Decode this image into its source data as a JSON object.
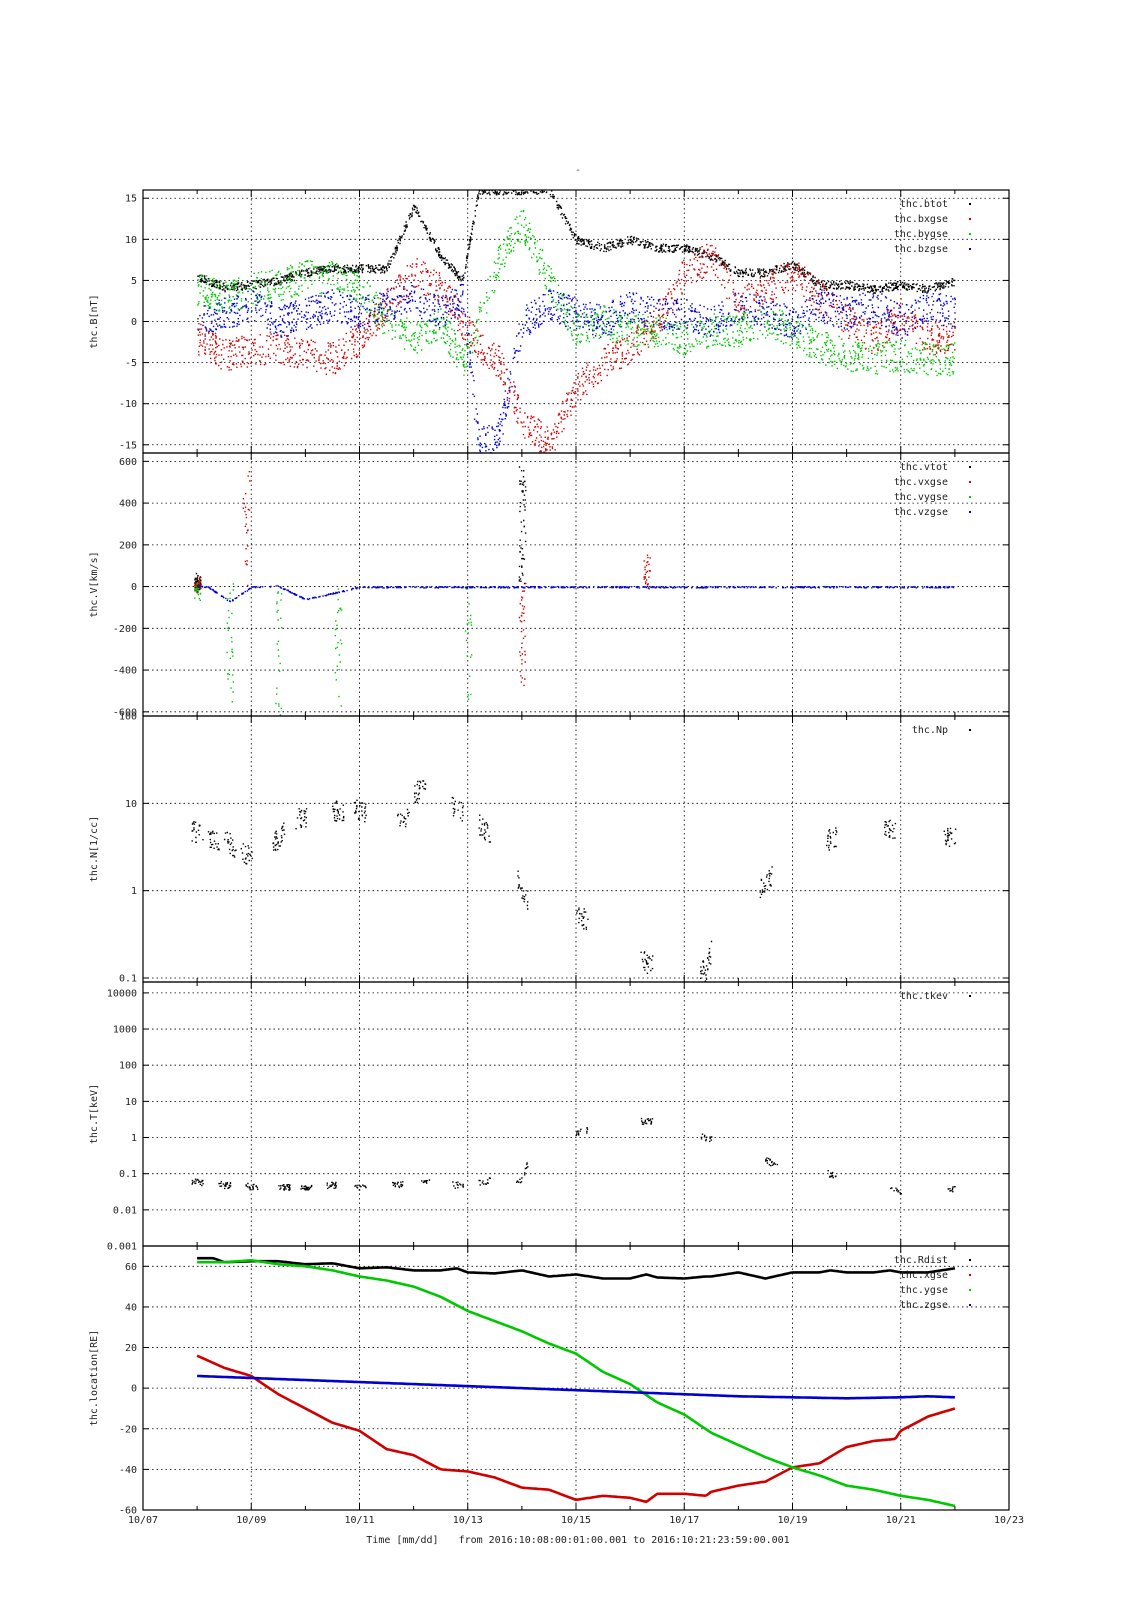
{
  "chart_data": {
    "title": "-",
    "x_axis": {
      "label": "Time [mm/dd]",
      "range_label": "from 2016:10:08:00:01:00.001  to  2016:10:21:23:59:00.001",
      "domain_days": [
        7,
        23
      ],
      "tick_days": [
        7,
        9,
        11,
        13,
        15,
        17,
        19,
        21,
        23
      ],
      "tick_labels": [
        "10/07",
        "10/09",
        "10/11",
        "10/13",
        "10/15",
        "10/17",
        "10/19",
        "10/21",
        "10/23"
      ],
      "data_start_day": 8.0,
      "data_end_day": 22.0
    },
    "panels": [
      {
        "id": "B",
        "type": "scatter",
        "ylabel": "thc.B[nT]",
        "scale": "linear",
        "ylim": [
          -16,
          16
        ],
        "yticks": [
          -15,
          -10,
          -5,
          0,
          5,
          10,
          15
        ],
        "ytick_labels": [
          "-15",
          "-10",
          "-5",
          "0",
          "5",
          "10",
          "15"
        ],
        "grid": true,
        "legend_position": "top-right",
        "series": [
          {
            "name": "thc.btot",
            "color": "#000000",
            "style": "points",
            "x": [
              8.0,
              8.5,
              9.0,
              9.5,
              10.0,
              10.5,
              11.0,
              11.5,
              12.0,
              12.5,
              12.9,
              13.2,
              13.6,
              14.0,
              14.5,
              15.0,
              15.5,
              16.0,
              16.5,
              17.0,
              17.5,
              18.0,
              18.5,
              19.0,
              19.5,
              20.0,
              20.5,
              21.0,
              21.5,
              22.0
            ],
            "y": [
              5.5,
              4.2,
              4.5,
              5.0,
              6.0,
              6.5,
              6.5,
              6.5,
              14.0,
              8.0,
              5.0,
              16.0,
              16.0,
              16.0,
              16.0,
              10.0,
              9.0,
              10.0,
              9.0,
              9.0,
              8.0,
              6.0,
              6.0,
              7.0,
              4.5,
              4.5,
              4.0,
              4.5,
              4.0,
              5.0
            ]
          },
          {
            "name": "thc.bxgse",
            "color": "#d10000",
            "style": "points",
            "x": [
              8.0,
              8.5,
              9.0,
              9.5,
              10.0,
              10.5,
              11.0,
              11.5,
              12.0,
              12.5,
              12.9,
              13.2,
              13.6,
              14.0,
              14.5,
              15.0,
              15.5,
              16.0,
              16.5,
              17.0,
              17.5,
              18.0,
              18.5,
              19.0,
              19.5,
              20.0,
              20.5,
              21.0,
              21.5,
              22.0
            ],
            "y": [
              -2.0,
              -4.0,
              -3.5,
              -3.0,
              -4.0,
              -4.5,
              -2.0,
              2.0,
              6.0,
              4.0,
              0.0,
              -3.0,
              -5.0,
              -12.0,
              -15.0,
              -8.0,
              -5.0,
              -3.0,
              0.0,
              6.0,
              8.0,
              2.0,
              4.0,
              6.0,
              3.0,
              0.0,
              -2.0,
              1.0,
              -2.0,
              -2.0
            ]
          },
          {
            "name": "thc.bygse",
            "color": "#00c800",
            "style": "points",
            "x": [
              8.0,
              8.5,
              9.0,
              9.5,
              10.0,
              10.5,
              11.0,
              11.5,
              12.0,
              12.5,
              12.9,
              13.2,
              13.6,
              14.0,
              14.5,
              15.0,
              15.5,
              16.0,
              16.5,
              17.0,
              17.5,
              18.0,
              18.5,
              19.0,
              19.5,
              20.0,
              20.5,
              21.0,
              21.5,
              22.0
            ],
            "y": [
              4.0,
              3.0,
              4.0,
              4.5,
              5.5,
              5.5,
              4.0,
              0.0,
              -2.0,
              0.0,
              -5.0,
              0.0,
              8.0,
              12.0,
              5.0,
              -1.0,
              0.0,
              -1.0,
              -1.0,
              -2.0,
              -1.0,
              -1.0,
              0.0,
              -1.0,
              -3.0,
              -4.0,
              -4.5,
              -4.0,
              -4.5,
              -4.5
            ]
          },
          {
            "name": "thc.bzgse",
            "color": "#0000d0",
            "style": "points",
            "x": [
              8.0,
              8.5,
              9.0,
              9.5,
              10.0,
              10.5,
              11.0,
              11.5,
              12.0,
              12.5,
              12.9,
              13.2,
              13.6,
              14.0,
              14.5,
              15.0,
              15.5,
              16.0,
              16.5,
              17.0,
              17.5,
              18.0,
              18.5,
              19.0,
              19.5,
              20.0,
              20.5,
              21.0,
              21.5,
              22.0
            ],
            "y": [
              0.0,
              1.0,
              2.0,
              0.0,
              1.0,
              2.0,
              1.0,
              2.0,
              3.0,
              1.0,
              3.0,
              -15.0,
              -13.0,
              0.0,
              2.0,
              1.0,
              0.0,
              2.0,
              1.0,
              1.0,
              0.0,
              2.0,
              1.0,
              0.0,
              2.0,
              1.0,
              2.0,
              0.0,
              2.0,
              1.0
            ]
          }
        ]
      },
      {
        "id": "V",
        "type": "scatter",
        "ylabel": "thc.V[km/s]",
        "scale": "linear",
        "ylim": [
          -620,
          640
        ],
        "yticks": [
          -600,
          -400,
          -200,
          0,
          200,
          400,
          600
        ],
        "ytick_labels": [
          "-600",
          "-400",
          "-200",
          "0",
          "200",
          "400",
          "600"
        ],
        "grid": true,
        "legend_position": "top-right",
        "series": [
          {
            "name": "thc.vtot",
            "color": "#000000",
            "style": "points",
            "x": [
              8.0,
              14.0
            ],
            "y": [
              40.0,
              600.0
            ]
          },
          {
            "name": "thc.vxgse",
            "color": "#d10000",
            "style": "points",
            "x": [
              8.0,
              8.9,
              14.0,
              16.3
            ],
            "y": [
              0.0,
              580.0,
              -460.0,
              150.0
            ]
          },
          {
            "name": "thc.vygse",
            "color": "#00c800",
            "style": "points",
            "x": [
              8.0,
              8.6,
              9.5,
              10.6,
              13.0
            ],
            "y": [
              -30.0,
              -540.0,
              -610.0,
              -600.0,
              -550.0
            ]
          },
          {
            "name": "thc.vzgse",
            "color": "#0000d0",
            "style": "points",
            "x": [
              8.0,
              8.2,
              8.6,
              9.0,
              9.5,
              10.0,
              11.0,
              12.0,
              13.0,
              14.0,
              15.0,
              16.0,
              17.0,
              18.0,
              19.0,
              20.0,
              21.0,
              22.0
            ],
            "y": [
              5.0,
              0.0,
              -70.0,
              0.0,
              5.0,
              -60.0,
              0.0,
              0.0,
              0.0,
              0.0,
              0.0,
              0.0,
              0.0,
              0.0,
              0.0,
              0.0,
              0.0,
              0.0
            ]
          }
        ]
      },
      {
        "id": "N",
        "type": "scatter",
        "ylabel": "thc.N[1/cc]",
        "scale": "log",
        "ylim": [
          0.09,
          100
        ],
        "yticks": [
          0.1,
          1,
          10,
          100
        ],
        "ytick_labels": [
          "0.1",
          "1",
          "10",
          "100"
        ],
        "grid": true,
        "legend_position": "top-right",
        "series": [
          {
            "name": "thc.Np",
            "color": "#000000",
            "style": "points",
            "x": [
              8.0,
              8.3,
              8.6,
              8.9,
              9.5,
              9.9,
              10.6,
              11.0,
              11.8,
              12.1,
              12.8,
              13.3,
              14.0,
              15.1,
              16.3,
              17.4,
              18.5,
              19.7,
              20.8,
              21.9
            ],
            "y": [
              4.8,
              4.0,
              3.5,
              2.5,
              4.0,
              7.0,
              8.5,
              8.5,
              6.0,
              15.0,
              9.0,
              5.0,
              0.8,
              0.5,
              0.15,
              0.12,
              1.2,
              4.0,
              5.0,
              4.0
            ]
          }
        ]
      },
      {
        "id": "T",
        "type": "scatter",
        "ylabel": "thc.T[keV]",
        "scale": "log",
        "ylim": [
          0.001,
          20000
        ],
        "yticks": [
          0.001,
          0.01,
          0.1,
          1,
          10,
          100,
          1000,
          10000
        ],
        "ytick_labels": [
          "0.001",
          "0.01",
          "0.1",
          "1",
          "10",
          "100",
          "1000",
          "10000"
        ],
        "grid": true,
        "legend_position": "top-right",
        "series": [
          {
            "name": "thc.tkev",
            "color": "#000000",
            "style": "points",
            "x": [
              8.0,
              8.5,
              9.0,
              9.6,
              10.0,
              10.5,
              11.0,
              11.7,
              12.2,
              12.8,
              13.3,
              14.0,
              15.1,
              16.3,
              17.4,
              18.6,
              19.7,
              20.9,
              21.9
            ],
            "y": [
              0.06,
              0.05,
              0.045,
              0.045,
              0.04,
              0.05,
              0.045,
              0.05,
              0.065,
              0.05,
              0.065,
              0.07,
              1.5,
              3.0,
              1.0,
              0.2,
              0.1,
              0.035,
              0.04
            ]
          }
        ]
      },
      {
        "id": "location",
        "type": "line",
        "ylabel": "thc.location[RE]",
        "scale": "linear",
        "ylim": [
          -60,
          70
        ],
        "yticks": [
          -60,
          -40,
          -20,
          0,
          20,
          40,
          60
        ],
        "ytick_labels": [
          "-60",
          "-40",
          "-20",
          "0",
          "20",
          "40",
          "60"
        ],
        "grid": true,
        "legend_position": "top-right",
        "series": [
          {
            "name": "thc.Rdist",
            "color": "#000000",
            "style": "line",
            "x": [
              8.0,
              8.3,
              8.5,
              9.0,
              9.5,
              10.0,
              10.5,
              11.0,
              11.5,
              12.0,
              12.5,
              12.8,
              13.0,
              13.5,
              14.0,
              14.5,
              15.0,
              15.5,
              16.0,
              16.3,
              16.5,
              17.0,
              17.4,
              17.5,
              18.0,
              18.5,
              19.0,
              19.5,
              19.7,
              20.0,
              20.5,
              20.8,
              21.0,
              21.5,
              22.0
            ],
            "y": [
              64.0,
              64.0,
              62.0,
              62.5,
              62.5,
              61.0,
              61.5,
              59.0,
              59.5,
              58.0,
              58.0,
              59.0,
              57.0,
              56.5,
              58.0,
              55.0,
              56.0,
              54.0,
              54.0,
              56.0,
              54.5,
              54.0,
              55.0,
              55.0,
              57.0,
              54.0,
              57.0,
              57.0,
              58.0,
              57.0,
              57.0,
              58.0,
              57.0,
              57.0,
              59.0
            ]
          },
          {
            "name": "thc.xgse",
            "color": "#d10000",
            "style": "line",
            "x": [
              8.0,
              8.5,
              9.0,
              9.5,
              10.0,
              10.5,
              11.0,
              11.5,
              12.0,
              12.5,
              13.0,
              13.5,
              14.0,
              14.5,
              15.0,
              15.5,
              16.0,
              16.3,
              16.5,
              17.0,
              17.4,
              17.5,
              18.0,
              18.5,
              19.0,
              19.5,
              20.0,
              20.5,
              20.9,
              21.0,
              21.5,
              22.0
            ],
            "y": [
              16.0,
              10.0,
              6.0,
              -3.0,
              -10.0,
              -17.0,
              -21.0,
              -30.0,
              -33.0,
              -40.0,
              -41.0,
              -44.0,
              -49.0,
              -50.0,
              -55.0,
              -53.0,
              -54.0,
              -56.0,
              -52.0,
              -52.0,
              -53.0,
              -51.0,
              -48.0,
              -46.0,
              -39.0,
              -37.0,
              -29.0,
              -26.0,
              -25.0,
              -21.0,
              -14.0,
              -10.0
            ]
          },
          {
            "name": "thc.ygse",
            "color": "#00c800",
            "style": "line",
            "x": [
              8.0,
              8.5,
              9.0,
              9.5,
              10.0,
              10.5,
              11.0,
              11.5,
              12.0,
              12.5,
              13.0,
              13.5,
              14.0,
              14.5,
              15.0,
              15.5,
              16.0,
              16.5,
              17.0,
              17.5,
              18.0,
              18.5,
              19.0,
              19.5,
              20.0,
              20.5,
              21.0,
              21.5,
              22.0
            ],
            "y": [
              62.0,
              62.0,
              63.0,
              61.0,
              60.0,
              58.0,
              55.0,
              53.0,
              50.0,
              45.0,
              38.0,
              33.0,
              28.0,
              22.0,
              17.0,
              8.0,
              2.0,
              -7.0,
              -13.0,
              -22.0,
              -28.0,
              -34.0,
              -39.0,
              -43.0,
              -48.0,
              -50.0,
              -53.0,
              -55.0,
              -58.0
            ]
          },
          {
            "name": "thc.zgse",
            "color": "#0000d0",
            "style": "line",
            "x": [
              8.0,
              9.0,
              10.0,
              11.0,
              12.0,
              13.0,
              14.0,
              15.0,
              16.0,
              17.0,
              18.0,
              19.0,
              20.0,
              21.0,
              21.5,
              22.0
            ],
            "y": [
              6.0,
              5.0,
              4.0,
              3.0,
              2.0,
              1.0,
              0.0,
              -1.0,
              -2.0,
              -3.0,
              -4.0,
              -4.5,
              -5.0,
              -4.5,
              -4.0,
              -4.5
            ]
          }
        ]
      }
    ]
  }
}
